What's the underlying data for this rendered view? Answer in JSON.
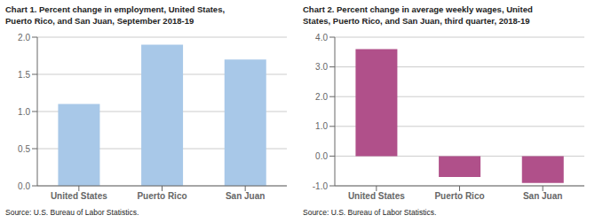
{
  "chart_data": [
    {
      "type": "bar",
      "title": "Chart 1. Percent change in employment, United States,",
      "subtitle": "Puerto Rico, and San Juan, September 2018-19",
      "categories": [
        "United States",
        "Puerto Rico",
        "San Juan"
      ],
      "values": [
        1.1,
        1.9,
        1.7
      ],
      "color": "#a8c8e8",
      "ylim": [
        0.0,
        2.0
      ],
      "yticks": [
        {
          "value": 0.0,
          "label": "0.0"
        },
        0.5,
        {
          "value": 1.0,
          "label": "1.0"
        },
        1.5,
        {
          "value": 2.0,
          "label": "2.0"
        }
      ],
      "grid": true,
      "annotations": [
        "Source: U.S. Bureau of Labor Statistics."
      ]
    },
    {
      "type": "bar",
      "title": "Chart 2. Percent change in average weekly wages, United",
      "subtitle": "States, Puerto Rico, and San Juan, third quarter, 2018-19",
      "categories": [
        "United States",
        "Puerto Rico",
        "San Juan"
      ],
      "values": [
        3.6,
        -0.7,
        -0.9
      ],
      "color": "#b0508a",
      "ylim": [
        -1.0,
        4.0
      ],
      "yticks": [
        {
          "value": -1.0,
          "label": "-1.0"
        },
        {
          "value": 0.0,
          "label": "0.0"
        },
        {
          "value": 1.0,
          "label": "1.0"
        },
        {
          "value": 2.0,
          "label": "2.0"
        },
        {
          "value": 3.0,
          "label": "3.0"
        },
        {
          "value": 4.0,
          "label": "4.0"
        }
      ],
      "grid": true,
      "annotations": [
        "Source: U.S. Bureau of Labor Statistics."
      ]
    }
  ]
}
